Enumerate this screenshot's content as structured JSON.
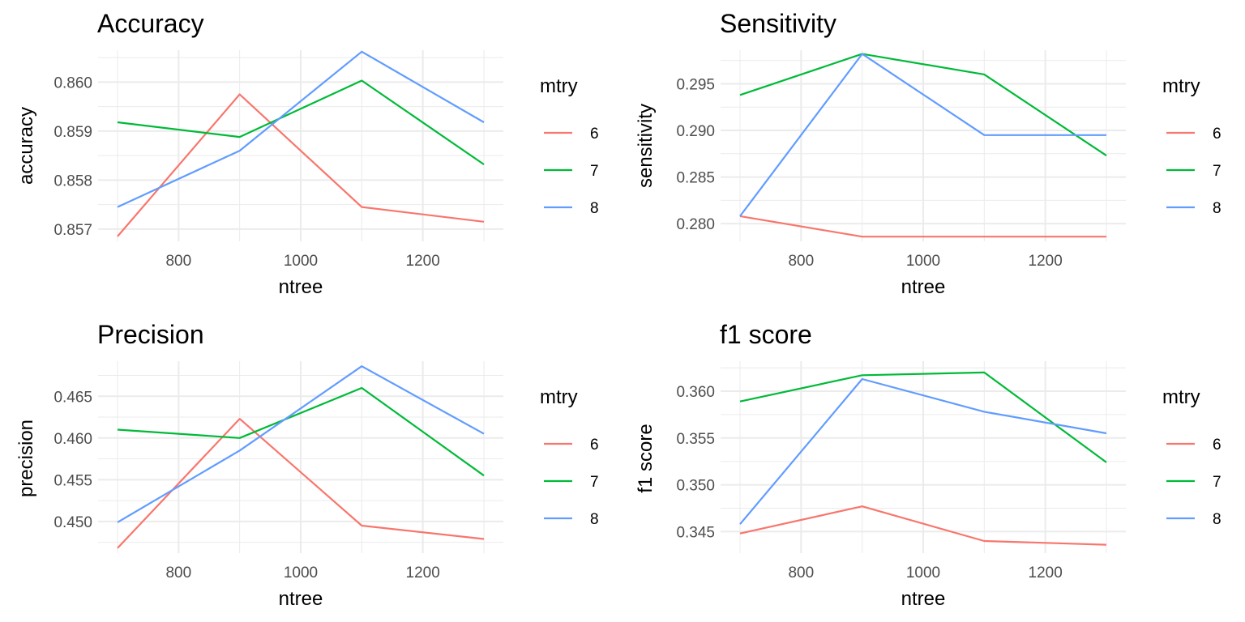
{
  "colors": {
    "6": "#F8766D",
    "7": "#00BA38",
    "8": "#619CFF"
  },
  "chart_data": [
    {
      "type": "line",
      "title": "Accuracy",
      "xlabel": "ntree",
      "ylabel": "accuracy",
      "xlim": [
        700,
        1300
      ],
      "ylim": [
        0.85675,
        0.86065
      ],
      "xticks": [
        800,
        1000,
        1200
      ],
      "yticks": [
        0.857,
        0.858,
        0.859,
        0.86
      ],
      "ytick_labels": [
        "0.857",
        "0.858",
        "0.859",
        "0.860"
      ],
      "legend": {
        "title": "mtry",
        "position": "right",
        "entries": [
          "6",
          "7",
          "8"
        ]
      },
      "x": [
        700,
        900,
        1100,
        1300
      ],
      "series": [
        {
          "name": "6",
          "values": [
            0.85685,
            0.85975,
            0.85745,
            0.85715
          ]
        },
        {
          "name": "7",
          "values": [
            0.85918,
            0.85888,
            0.86003,
            0.85832
          ]
        },
        {
          "name": "8",
          "values": [
            0.85745,
            0.8586,
            0.86062,
            0.85918
          ]
        }
      ]
    },
    {
      "type": "line",
      "title": "Sensitivity",
      "xlabel": "ntree",
      "ylabel": "sensitivity",
      "xlim": [
        700,
        1300
      ],
      "ylim": [
        0.2781,
        0.2986
      ],
      "xticks": [
        800,
        1000,
        1200
      ],
      "yticks": [
        0.28,
        0.285,
        0.29,
        0.295
      ],
      "ytick_labels": [
        "0.280",
        "0.285",
        "0.290",
        "0.295"
      ],
      "legend": {
        "title": "mtry",
        "position": "right",
        "entries": [
          "6",
          "7",
          "8"
        ]
      },
      "x": [
        700,
        900,
        1100,
        1300
      ],
      "series": [
        {
          "name": "6",
          "values": [
            0.2808,
            0.2786,
            0.2786,
            0.2786
          ]
        },
        {
          "name": "7",
          "values": [
            0.2938,
            0.2982,
            0.296,
            0.2873
          ]
        },
        {
          "name": "8",
          "values": [
            0.2808,
            0.2982,
            0.2895,
            0.2895
          ]
        }
      ]
    },
    {
      "type": "line",
      "title": "Precision",
      "xlabel": "ntree",
      "ylabel": "precision",
      "xlim": [
        700,
        1300
      ],
      "ylim": [
        0.4462,
        0.4692
      ],
      "xticks": [
        800,
        1000,
        1200
      ],
      "yticks": [
        0.45,
        0.455,
        0.46,
        0.465
      ],
      "ytick_labels": [
        "0.450",
        "0.455",
        "0.460",
        "0.465"
      ],
      "legend": {
        "title": "mtry",
        "position": "right",
        "entries": [
          "6",
          "7",
          "8"
        ]
      },
      "x": [
        700,
        900,
        1100,
        1300
      ],
      "series": [
        {
          "name": "6",
          "values": [
            0.4468,
            0.4623,
            0.4495,
            0.4479
          ]
        },
        {
          "name": "7",
          "values": [
            0.461,
            0.46,
            0.466,
            0.4555
          ]
        },
        {
          "name": "8",
          "values": [
            0.4499,
            0.4585,
            0.4686,
            0.4605
          ]
        }
      ]
    },
    {
      "type": "line",
      "title": "f1 score",
      "xlabel": "ntree",
      "ylabel": "f1 score",
      "xlim": [
        700,
        1300
      ],
      "ylim": [
        0.3427,
        0.3632
      ],
      "xticks": [
        800,
        1000,
        1200
      ],
      "yticks": [
        0.345,
        0.35,
        0.355,
        0.36
      ],
      "ytick_labels": [
        "0.345",
        "0.350",
        "0.355",
        "0.360"
      ],
      "legend": {
        "title": "mtry",
        "position": "right",
        "entries": [
          "6",
          "7",
          "8"
        ]
      },
      "x": [
        700,
        900,
        1100,
        1300
      ],
      "series": [
        {
          "name": "6",
          "values": [
            0.3448,
            0.3477,
            0.344,
            0.3436
          ]
        },
        {
          "name": "7",
          "values": [
            0.3589,
            0.3617,
            0.362,
            0.3524
          ]
        },
        {
          "name": "8",
          "values": [
            0.3458,
            0.3613,
            0.3578,
            0.3555
          ]
        }
      ]
    }
  ]
}
